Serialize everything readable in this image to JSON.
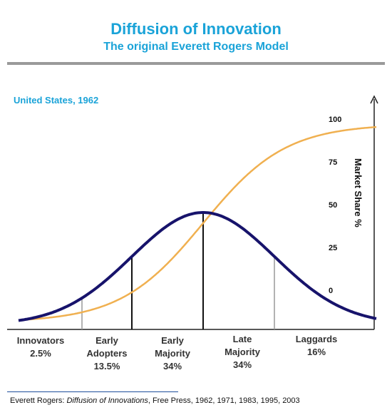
{
  "title": "Diffusion of Innovation",
  "subtitle": "The original Everett Rogers Model",
  "region_label": "United States, 1962",
  "footer": {
    "author": "Everett Rogers: ",
    "book": "Diffusion of Innovations",
    "rest": ",  Free Press, 1962, 1971, 1983, 1995, 2003"
  },
  "chart_data": {
    "type": "line",
    "ylabel": "Market Share %",
    "y_ticks": [
      0,
      25,
      50,
      75,
      100
    ],
    "segments": [
      {
        "name": "Innovators",
        "share": "2.5%",
        "lines": [
          "Innovators",
          "2.5%"
        ]
      },
      {
        "name": "Early Adopters",
        "share": "13.5%",
        "lines": [
          "Early",
          "Adopters",
          "13.5%"
        ]
      },
      {
        "name": "Early Majority",
        "share": "34%",
        "lines": [
          "Early",
          "Majority",
          "34%"
        ]
      },
      {
        "name": "Late Majority",
        "share": "34%",
        "lines": [
          "Late",
          "Majority",
          "34%"
        ]
      },
      {
        "name": "Laggards",
        "share": "16%",
        "lines": [
          "Laggards",
          "16%"
        ]
      }
    ],
    "series": [
      {
        "type": "bell",
        "color": "#17136b"
      },
      {
        "type": "s-curve",
        "color": "#f0b050"
      }
    ],
    "colors": {
      "bell": "#17136b",
      "s_curve": "#f0b050",
      "divider_dark": "#111111",
      "divider_light": "#999999"
    }
  }
}
